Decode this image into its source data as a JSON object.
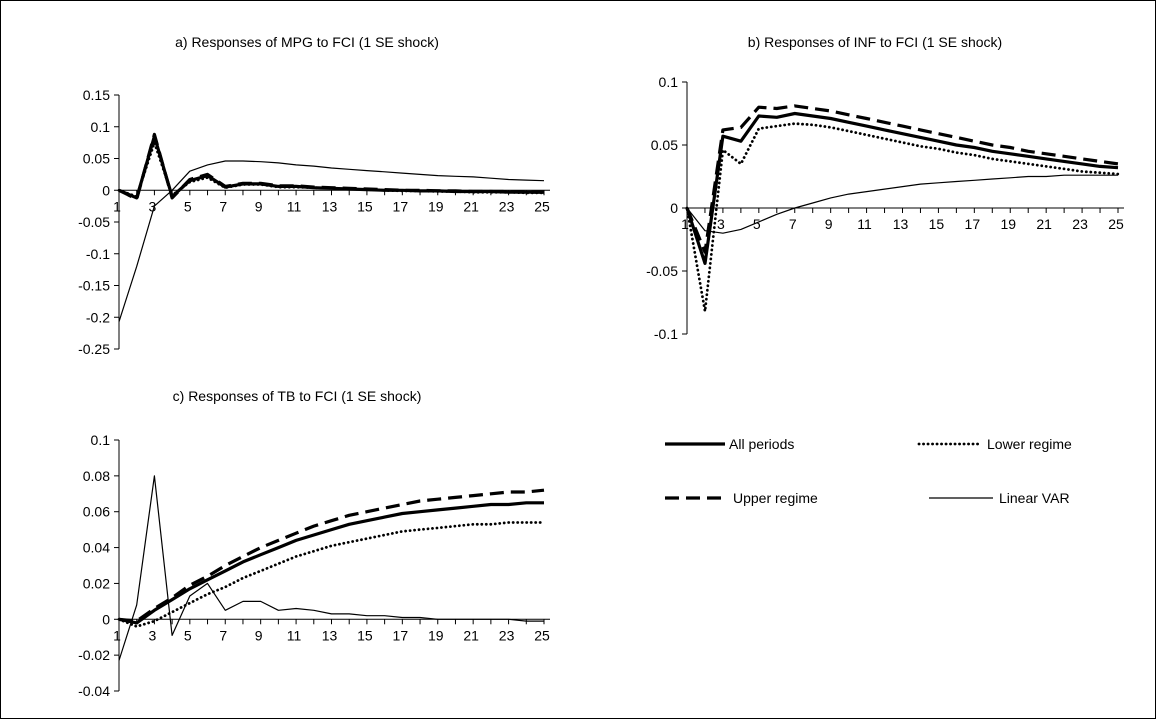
{
  "legend": {
    "items": [
      {
        "key": "all",
        "label": "All periods"
      },
      {
        "key": "lower",
        "label": "Lower regime"
      },
      {
        "key": "upper",
        "label": "Upper regime"
      },
      {
        "key": "linear",
        "label": "Linear VAR"
      }
    ]
  },
  "chart_data": [
    {
      "type": "line",
      "title": "a) Responses of MPG to FCI (1 SE shock)",
      "x": [
        1,
        2,
        3,
        4,
        5,
        6,
        7,
        8,
        9,
        10,
        11,
        12,
        13,
        14,
        15,
        16,
        17,
        18,
        19,
        20,
        21,
        22,
        23,
        24,
        25
      ],
      "xticks": [
        1,
        3,
        5,
        7,
        9,
        11,
        13,
        15,
        17,
        19,
        21,
        23,
        25
      ],
      "ylim": [
        -0.25,
        0.15
      ],
      "yticks": [
        "0.15",
        "0.1",
        "0.05",
        "0",
        "-0.05",
        "-0.1",
        "-0.15",
        "-0.2",
        "-0.25"
      ],
      "series": [
        {
          "key": "all",
          "values": [
            0,
            -0.012,
            0.085,
            -0.01,
            0.015,
            0.023,
            0.005,
            0.01,
            0.01,
            0.006,
            0.006,
            0.004,
            0.003,
            0.002,
            0.001,
            0.0,
            0.0,
            -0.001,
            -0.001,
            -0.002,
            -0.002,
            -0.002,
            -0.003,
            -0.003,
            -0.003
          ]
        },
        {
          "key": "upper",
          "values": [
            0,
            -0.014,
            0.088,
            -0.012,
            0.017,
            0.025,
            0.006,
            0.011,
            0.011,
            0.007,
            0.007,
            0.005,
            0.004,
            0.003,
            0.002,
            0.001,
            0.0,
            0.0,
            -0.001,
            -0.001,
            -0.002,
            -0.002,
            -0.002,
            -0.003,
            -0.003
          ]
        },
        {
          "key": "lower",
          "values": [
            0,
            -0.01,
            0.075,
            -0.008,
            0.013,
            0.02,
            0.004,
            0.009,
            0.009,
            0.005,
            0.005,
            0.004,
            0.003,
            0.002,
            0.001,
            0.0,
            -0.001,
            -0.001,
            -0.002,
            -0.002,
            -0.003,
            -0.003,
            -0.003,
            -0.004,
            -0.004
          ]
        },
        {
          "key": "linear",
          "values": [
            -0.207,
            -0.12,
            -0.025,
            0.0,
            0.03,
            0.04,
            0.046,
            0.046,
            0.045,
            0.043,
            0.04,
            0.038,
            0.035,
            0.033,
            0.031,
            0.029,
            0.027,
            0.025,
            0.023,
            0.022,
            0.021,
            0.019,
            0.017,
            0.016,
            0.015
          ]
        }
      ]
    },
    {
      "type": "line",
      "title": "b) Responses of INF to FCI (1 SE shock)",
      "x": [
        1,
        2,
        3,
        4,
        5,
        6,
        7,
        8,
        9,
        10,
        11,
        12,
        13,
        14,
        15,
        16,
        17,
        18,
        19,
        20,
        21,
        22,
        23,
        24,
        25
      ],
      "xticks": [
        1,
        3,
        5,
        7,
        9,
        11,
        13,
        15,
        17,
        19,
        21,
        23,
        25
      ],
      "ylim": [
        -0.1,
        0.1
      ],
      "yticks": [
        "0.1",
        "0.05",
        "0",
        "-0.05",
        "-0.1"
      ],
      "series": [
        {
          "key": "all",
          "values": [
            0,
            -0.044,
            0.057,
            0.053,
            0.073,
            0.072,
            0.075,
            0.073,
            0.071,
            0.068,
            0.065,
            0.062,
            0.059,
            0.056,
            0.053,
            0.05,
            0.048,
            0.045,
            0.043,
            0.041,
            0.039,
            0.037,
            0.035,
            0.033,
            0.032
          ]
        },
        {
          "key": "upper",
          "values": [
            0,
            -0.035,
            0.062,
            0.064,
            0.08,
            0.079,
            0.081,
            0.079,
            0.077,
            0.074,
            0.071,
            0.068,
            0.065,
            0.062,
            0.059,
            0.056,
            0.053,
            0.05,
            0.048,
            0.045,
            0.043,
            0.041,
            0.039,
            0.037,
            0.035
          ]
        },
        {
          "key": "lower",
          "values": [
            0,
            -0.082,
            0.046,
            0.035,
            0.063,
            0.065,
            0.067,
            0.066,
            0.064,
            0.061,
            0.058,
            0.055,
            0.052,
            0.049,
            0.047,
            0.044,
            0.042,
            0.039,
            0.037,
            0.035,
            0.033,
            0.031,
            0.029,
            0.028,
            0.027
          ]
        },
        {
          "key": "linear",
          "values": [
            0,
            -0.018,
            -0.02,
            -0.017,
            -0.011,
            -0.005,
            0.0,
            0.004,
            0.008,
            0.011,
            0.013,
            0.015,
            0.017,
            0.019,
            0.02,
            0.021,
            0.022,
            0.023,
            0.024,
            0.025,
            0.025,
            0.026,
            0.026,
            0.026,
            0.026
          ]
        }
      ]
    },
    {
      "type": "line",
      "title": "c) Responses of TB to FCI (1 SE shock)",
      "x": [
        1,
        2,
        3,
        4,
        5,
        6,
        7,
        8,
        9,
        10,
        11,
        12,
        13,
        14,
        15,
        16,
        17,
        18,
        19,
        20,
        21,
        22,
        23,
        24,
        25
      ],
      "xticks": [
        1,
        3,
        5,
        7,
        9,
        11,
        13,
        15,
        17,
        19,
        21,
        23,
        25
      ],
      "ylim": [
        -0.04,
        0.1
      ],
      "yticks": [
        "0.1",
        "0.08",
        "0.06",
        "0.04",
        "0.02",
        "0",
        "-0.02",
        "-0.04"
      ],
      "series": [
        {
          "key": "all",
          "values": [
            0,
            -0.002,
            0.005,
            0.011,
            0.017,
            0.022,
            0.027,
            0.032,
            0.036,
            0.04,
            0.044,
            0.047,
            0.05,
            0.053,
            0.055,
            0.057,
            0.059,
            0.06,
            0.061,
            0.062,
            0.063,
            0.064,
            0.064,
            0.065,
            0.065
          ]
        },
        {
          "key": "upper",
          "values": [
            0,
            -0.001,
            0.006,
            0.012,
            0.019,
            0.024,
            0.03,
            0.035,
            0.04,
            0.044,
            0.048,
            0.052,
            0.055,
            0.058,
            0.06,
            0.062,
            0.064,
            0.066,
            0.067,
            0.068,
            0.069,
            0.07,
            0.071,
            0.071,
            0.072
          ]
        },
        {
          "key": "lower",
          "values": [
            0,
            -0.004,
            -0.001,
            0.004,
            0.009,
            0.014,
            0.018,
            0.023,
            0.027,
            0.031,
            0.035,
            0.038,
            0.041,
            0.043,
            0.045,
            0.047,
            0.049,
            0.05,
            0.051,
            0.052,
            0.053,
            0.053,
            0.054,
            0.054,
            0.054
          ]
        },
        {
          "key": "linear",
          "values": [
            -0.023,
            0.008,
            0.08,
            -0.009,
            0.013,
            0.02,
            0.005,
            0.01,
            0.01,
            0.005,
            0.006,
            0.005,
            0.003,
            0.003,
            0.002,
            0.002,
            0.001,
            0.001,
            0.0,
            0.0,
            0.0,
            0.0,
            0.0,
            -0.001,
            -0.001
          ]
        }
      ]
    }
  ]
}
